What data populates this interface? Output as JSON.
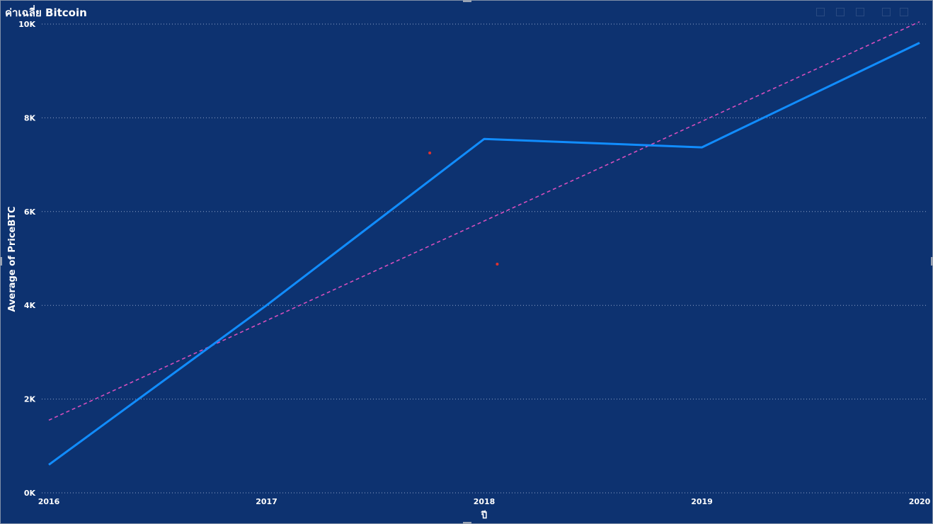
{
  "visual": {
    "title": "ค่าเฉลี่ย Bitcoin"
  },
  "chart_data": {
    "type": "line",
    "title": "ค่าเฉลี่ย Bitcoin",
    "xlabel": "ปี",
    "ylabel": "Average of PriceBTC",
    "x": [
      2016,
      2017,
      2018,
      2019,
      2020
    ],
    "x_tick_labels": [
      "2016",
      "2017",
      "2018",
      "2019",
      "2020"
    ],
    "ylim": [
      0,
      10000
    ],
    "y_ticks": [
      0,
      2000,
      4000,
      6000,
      8000,
      10000
    ],
    "y_tick_labels": [
      "0K",
      "2K",
      "4K",
      "6K",
      "8K",
      "10K"
    ],
    "grid": true,
    "series": [
      {
        "values": [
          600,
          4000,
          7550,
          7370,
          9600
        ],
        "color": "#118dff"
      }
    ],
    "trend_line": {
      "start": [
        2016,
        1550
      ],
      "end": [
        2020,
        10050
      ],
      "color": "#d64fbd",
      "style": "dashed"
    },
    "markers": [
      {
        "x": 2017.75,
        "y": 7250,
        "color": "#e0322f"
      },
      {
        "x": 2018.06,
        "y": 4880,
        "color": "#e0322f"
      }
    ]
  }
}
